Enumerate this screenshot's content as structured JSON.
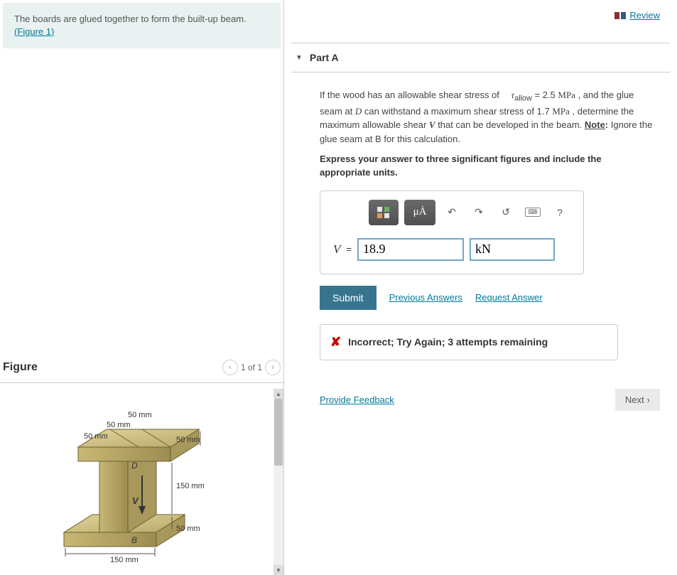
{
  "problem": {
    "text_before_link": "The boards are glued together to form the built-up beam. ",
    "link_text": "(Figure 1)"
  },
  "review": {
    "label": "Review"
  },
  "part": {
    "title": "Part A",
    "prompt_html": "If the wood has an allowable shear stress of   <span class='var'>τ</span><sub>allow</sub> = 2.5 <span class='unit'>MPa</span> , and the glue seam at <span class='var'>D</span> can withstand a maximum shear stress of 1.7 <span class='unit'>MPa</span> , determine the maximum allowable shear <span class='var' style='font-weight:bold'>V</span> that can be developed in the beam. <b><span class='note-u'>Note</span>:</b> Ignore the glue seam at B for this calculation.",
    "instruction": "Express your answer to three significant figures and include the appropriate units."
  },
  "answer": {
    "variable": "V",
    "equals": "=",
    "value": "18.9",
    "unit": "kN"
  },
  "toolbar": {
    "mu_label": "μȦ",
    "help": "?"
  },
  "buttons": {
    "submit": "Submit",
    "previous": "Previous Answers",
    "request": "Request Answer",
    "next": "Next"
  },
  "feedback": {
    "text": "Incorrect; Try Again; 3 attempts remaining"
  },
  "figure": {
    "title": "Figure",
    "counter": "1 of 1",
    "dims": {
      "top_50a": "50 mm",
      "top_50b": "50 mm",
      "top_50c": "50 mm",
      "flange_50": "50 mm",
      "web_150": "150 mm",
      "bot_flange_50": "50 mm",
      "bottom_150": "150 mm",
      "label_D": "D",
      "label_B": "B",
      "label_V": "V"
    }
  },
  "bottom": {
    "feedback_link": "Provide Feedback"
  }
}
